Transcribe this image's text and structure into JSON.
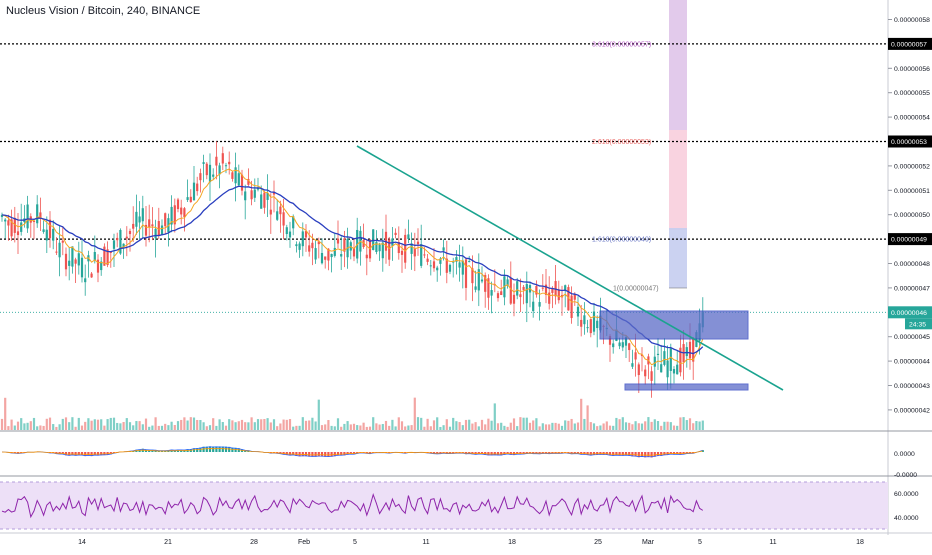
{
  "header": {
    "title": "Nucleus Vision / Bitcoin, 240, BINANCE"
  },
  "colors": {
    "up": "#26a69a",
    "down": "#ef5350",
    "ema_fast": "#f5a623",
    "ema_slow": "#2a3fbf",
    "trendline": "#1aa38f",
    "zone": "#5b6bc7",
    "fib_purple": "#9c27b0",
    "fib_red": "#e53935",
    "fib_blue": "#3f51b5",
    "rsi_line": "#8e24aa",
    "rsi_bg": "#ede0f7",
    "macd_line": "#2962ff",
    "signal_line": "#ff9800"
  },
  "chart_data": {
    "type": "candlestick",
    "title": "Nucleus Vision / Bitcoin, 240, BINANCE",
    "price_range": [
      4.1e-07,
      5.8e-07
    ],
    "price_ticks": [
      "0.00000058",
      "0.00000057",
      "0.00000056",
      "0.00000055",
      "0.00000054",
      "0.00000053",
      "0.00000052",
      "0.00000051",
      "0.00000050",
      "0.00000049",
      "0.00000048",
      "0.00000047",
      "0.00000046",
      "0.00000045",
      "0.00000044",
      "0.00000043",
      "0.00000042"
    ],
    "x_ticks": [
      "14",
      "21",
      "28",
      "Feb",
      "5",
      "11",
      "18",
      "25",
      "Mar",
      "5",
      "11",
      "18"
    ],
    "horizontal_levels": [
      {
        "price": 5.7e-07,
        "label": "0.00000057"
      },
      {
        "price": 5.3e-07,
        "label": "0.00000053"
      },
      {
        "price": 4.9e-07,
        "label": "0.00000049"
      }
    ],
    "last_price": {
      "price": 4.6e-07,
      "label": "0.00000046",
      "countdown": "24:35"
    },
    "fib_levels": [
      {
        "label": "3.618(0.00000057)",
        "price": 5.7e-07
      },
      {
        "label": "2.618(0.00000053)",
        "price": 5.3e-07
      },
      {
        "label": "1.618(0.00000049)",
        "price": 4.9e-07
      },
      {
        "label": "1(0.00000047)",
        "price": 4.7e-07
      }
    ],
    "macd_ticks": [
      "0.0000",
      "-0.0000"
    ],
    "rsi_ticks": [
      "60.0000",
      "40.0000"
    ]
  }
}
